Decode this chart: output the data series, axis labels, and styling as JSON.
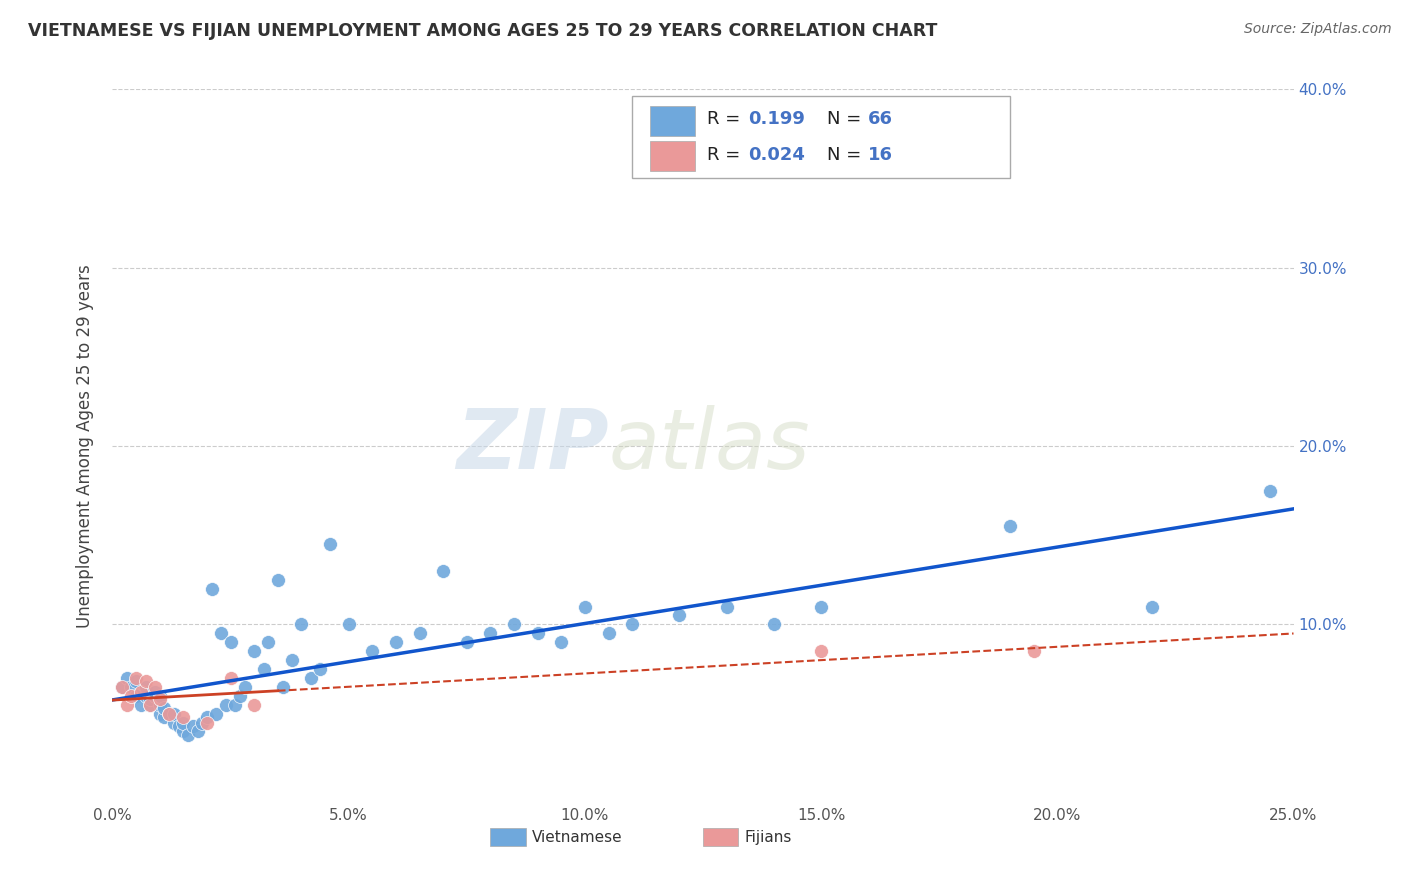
{
  "title": "VIETNAMESE VS FIJIAN UNEMPLOYMENT AMONG AGES 25 TO 29 YEARS CORRELATION CHART",
  "source": "Source: ZipAtlas.com",
  "ylabel": "Unemployment Among Ages 25 to 29 years",
  "xlim": [
    0.0,
    0.25
  ],
  "ylim": [
    0.0,
    0.4
  ],
  "xticks": [
    0.0,
    0.05,
    0.1,
    0.15,
    0.2,
    0.25
  ],
  "yticks": [
    0.0,
    0.1,
    0.2,
    0.3,
    0.4
  ],
  "xticklabels": [
    "0.0%",
    "5.0%",
    "10.0%",
    "15.0%",
    "20.0%",
    "25.0%"
  ],
  "yticklabels_right": [
    "",
    "10.0%",
    "20.0%",
    "30.0%",
    "40.0%"
  ],
  "vietnamese_color": "#6fa8dc",
  "fijian_color": "#ea9999",
  "trend_viet_color": "#1155cc",
  "trend_fiji_color": "#cc4125",
  "watermark_zip": "ZIP",
  "watermark_atlas": "atlas",
  "legend_R_viet": "0.199",
  "legend_N_viet": "66",
  "legend_R_fiji": "0.024",
  "legend_N_fiji": "16",
  "viet_x": [
    0.002,
    0.003,
    0.004,
    0.005,
    0.005,
    0.006,
    0.007,
    0.007,
    0.008,
    0.008,
    0.009,
    0.009,
    0.01,
    0.01,
    0.01,
    0.011,
    0.011,
    0.012,
    0.013,
    0.013,
    0.014,
    0.015,
    0.015,
    0.016,
    0.017,
    0.018,
    0.019,
    0.02,
    0.021,
    0.022,
    0.023,
    0.024,
    0.025,
    0.026,
    0.027,
    0.028,
    0.03,
    0.032,
    0.033,
    0.035,
    0.036,
    0.038,
    0.04,
    0.042,
    0.044,
    0.046,
    0.05,
    0.055,
    0.06,
    0.065,
    0.07,
    0.075,
    0.08,
    0.085,
    0.09,
    0.095,
    0.1,
    0.105,
    0.11,
    0.12,
    0.13,
    0.14,
    0.15,
    0.19,
    0.22,
    0.245
  ],
  "viet_y": [
    0.065,
    0.07,
    0.065,
    0.06,
    0.068,
    0.055,
    0.06,
    0.065,
    0.055,
    0.058,
    0.06,
    0.062,
    0.05,
    0.055,
    0.06,
    0.048,
    0.053,
    0.05,
    0.045,
    0.05,
    0.043,
    0.04,
    0.045,
    0.038,
    0.043,
    0.04,
    0.045,
    0.048,
    0.12,
    0.05,
    0.095,
    0.055,
    0.09,
    0.055,
    0.06,
    0.065,
    0.085,
    0.075,
    0.09,
    0.125,
    0.065,
    0.08,
    0.1,
    0.07,
    0.075,
    0.145,
    0.1,
    0.085,
    0.09,
    0.095,
    0.13,
    0.09,
    0.095,
    0.1,
    0.095,
    0.09,
    0.11,
    0.095,
    0.1,
    0.105,
    0.11,
    0.1,
    0.11,
    0.155,
    0.11,
    0.175
  ],
  "fiji_x": [
    0.002,
    0.003,
    0.004,
    0.005,
    0.006,
    0.007,
    0.008,
    0.009,
    0.01,
    0.012,
    0.015,
    0.02,
    0.025,
    0.03,
    0.15,
    0.195
  ],
  "fiji_y": [
    0.065,
    0.055,
    0.06,
    0.07,
    0.062,
    0.068,
    0.055,
    0.065,
    0.058,
    0.05,
    0.048,
    0.045,
    0.07,
    0.055,
    0.085,
    0.085
  ],
  "viet_trend": [
    0.08,
    0.17
  ],
  "fiji_trend_solid": [
    0.0,
    0.08
  ],
  "fiji_trend_dashed": [
    0.08,
    0.25
  ],
  "fiji_trend_y_start": 0.092,
  "fiji_trend_y_mid": 0.097,
  "fiji_trend_y_end": 0.098
}
